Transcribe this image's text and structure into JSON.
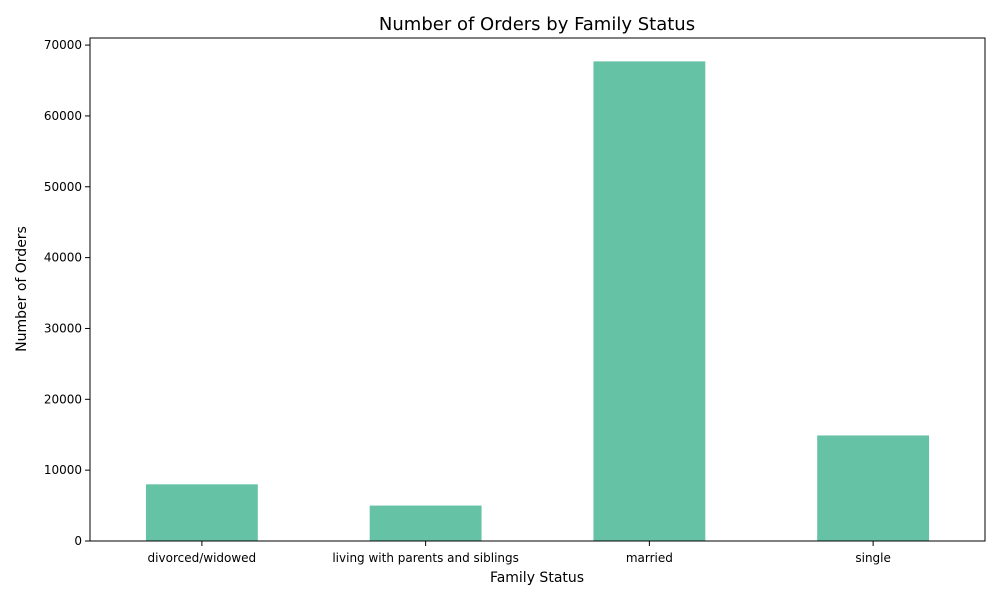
{
  "chart_data": {
    "type": "bar",
    "title": "Number of Orders by Family Status",
    "xlabel": "Family Status",
    "ylabel": "Number of Orders",
    "categories": [
      "divorced/widowed",
      "living with parents and siblings",
      "married",
      "single"
    ],
    "values": [
      8000,
      5000,
      67700,
      14900
    ],
    "ylim": [
      0,
      71000
    ],
    "yticks": [
      0,
      10000,
      20000,
      30000,
      40000,
      50000,
      60000,
      70000
    ],
    "bar_color": "#66c2a5",
    "grid": false,
    "legend": "none"
  }
}
